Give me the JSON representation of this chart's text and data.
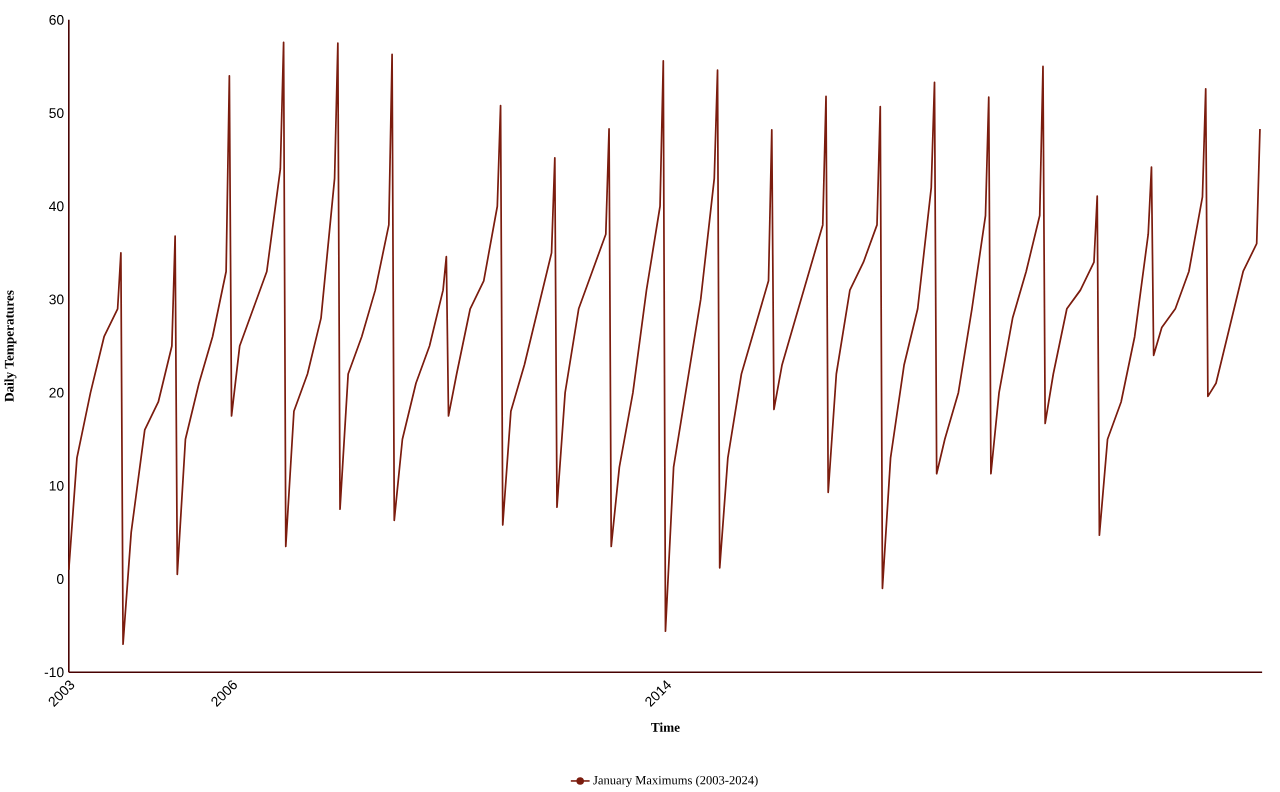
{
  "chart_data": {
    "type": "line",
    "xlabel": "Time",
    "ylabel": "Daily Temperatures",
    "x": [
      2003,
      2003.15,
      2003.4,
      2003.65,
      2003.9,
      2003.96,
      2004,
      2004.15,
      2004.4,
      2004.65,
      2004.9,
      2004.96,
      2005,
      2005.15,
      2005.4,
      2005.65,
      2005.9,
      2005.96,
      2006,
      2006.15,
      2006.4,
      2006.65,
      2006.9,
      2006.96,
      2007,
      2007.15,
      2007.4,
      2007.65,
      2007.9,
      2007.96,
      2008,
      2008.15,
      2008.4,
      2008.65,
      2008.9,
      2008.96,
      2009,
      2009.15,
      2009.4,
      2009.65,
      2009.9,
      2009.96,
      2010,
      2010.15,
      2010.4,
      2010.65,
      2010.9,
      2010.96,
      2011,
      2011.15,
      2011.4,
      2011.65,
      2011.9,
      2011.96,
      2012,
      2012.15,
      2012.4,
      2012.65,
      2012.9,
      2012.96,
      2013,
      2013.15,
      2013.4,
      2013.65,
      2013.9,
      2013.96,
      2014,
      2014.15,
      2014.4,
      2014.65,
      2014.9,
      2014.96,
      2015,
      2015.15,
      2015.4,
      2015.65,
      2015.9,
      2015.96,
      2016,
      2016.15,
      2016.4,
      2016.65,
      2016.9,
      2016.96,
      2017,
      2017.15,
      2017.4,
      2017.65,
      2017.9,
      2017.96,
      2018,
      2018.15,
      2018.4,
      2018.65,
      2018.9,
      2018.96,
      2019,
      2019.15,
      2019.4,
      2019.65,
      2019.9,
      2019.96,
      2020,
      2020.15,
      2020.4,
      2020.65,
      2020.9,
      2020.96,
      2021,
      2021.15,
      2021.4,
      2021.65,
      2021.9,
      2021.96,
      2022,
      2022.15,
      2022.4,
      2022.65,
      2022.9,
      2022.96,
      2023,
      2023.15,
      2023.4,
      2023.65,
      2023.9,
      2023.96,
      2024,
      2024.15,
      2024.4,
      2024.65,
      2024.9,
      2024.96
    ],
    "series": [
      {
        "name": "January Maximums (2003-2024)",
        "color": "#7b1c0e",
        "values": [
          1,
          13,
          20,
          26,
          29,
          35,
          -7,
          5,
          16,
          19,
          25,
          36.8,
          0.5,
          15,
          21,
          26,
          33,
          54,
          17.5,
          25,
          29,
          33,
          44,
          57.6,
          3.5,
          18,
          22,
          28,
          43,
          57.5,
          7.5,
          22,
          26,
          31,
          38,
          56.3,
          6.3,
          15,
          21,
          25,
          31,
          34.6,
          17.5,
          22,
          29,
          32,
          40,
          50.8,
          5.8,
          18,
          23,
          29,
          35,
          45.2,
          7.7,
          20,
          29,
          33,
          37,
          48.3,
          3.5,
          12,
          20,
          31,
          40,
          55.6,
          -5.6,
          12,
          21,
          30,
          43,
          54.6,
          1.2,
          13,
          22,
          27,
          32,
          48.2,
          18.2,
          23,
          28,
          33,
          38,
          51.8,
          9.3,
          22,
          31,
          34,
          38,
          50.7,
          -1,
          13,
          23,
          29,
          42,
          53.3,
          11.3,
          15,
          20,
          29,
          39,
          51.7,
          11.3,
          20,
          28,
          33,
          39,
          55,
          16.7,
          22,
          29,
          31,
          34,
          41.1,
          4.7,
          15,
          19,
          26,
          37,
          44.2,
          24,
          27,
          29,
          33,
          41,
          52.6,
          19.6,
          21,
          27,
          33,
          36,
          48.3
        ]
      }
    ],
    "xlim": [
      2003,
      2025
    ],
    "xticks": [
      2003,
      2006,
      2014
    ],
    "ylim": [
      -10,
      60
    ],
    "yticks": [
      -10,
      0,
      10,
      20,
      30,
      40,
      50,
      60
    ],
    "grid": false,
    "legend": "bottom"
  }
}
